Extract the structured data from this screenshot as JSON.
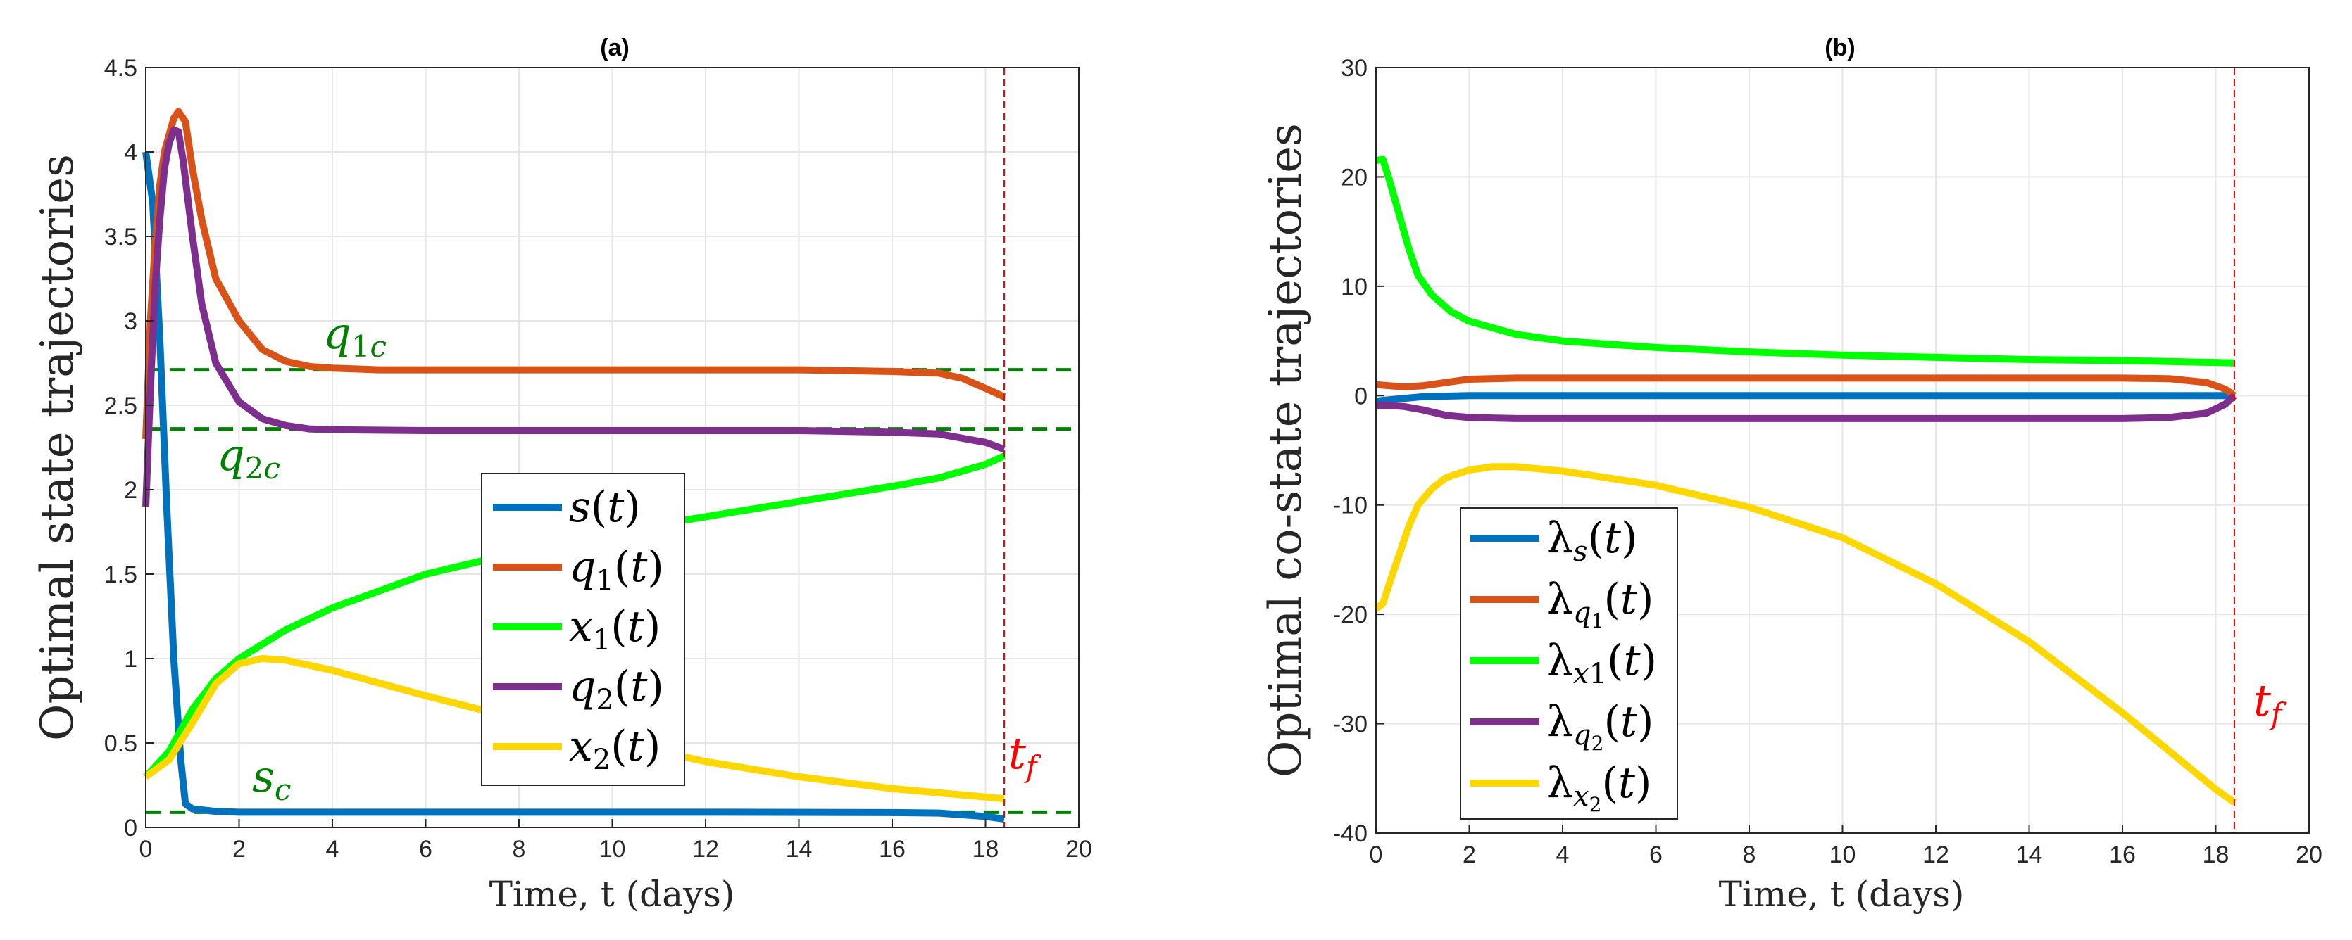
{
  "chart_data": [
    {
      "type": "line",
      "title": "(a)",
      "xlabel": "Time, t (days)",
      "ylabel": "Optimal state trajectories",
      "xlim": [
        0,
        20
      ],
      "ylim": [
        0,
        4.5
      ],
      "xticks": [
        0,
        2,
        4,
        6,
        8,
        10,
        12,
        14,
        16,
        18,
        20
      ],
      "yticks": [
        0,
        0.5,
        1,
        1.5,
        2,
        2.5,
        3,
        3.5,
        4,
        4.5
      ],
      "xtick_labels": [
        "0",
        "2",
        "4",
        "6",
        "8",
        "10",
        "12",
        "14",
        "16",
        "18",
        "20"
      ],
      "ytick_labels": [
        "0",
        "0.5",
        "1",
        "1.5",
        "2",
        "2.5",
        "3",
        "3.5",
        "4",
        "4.5"
      ],
      "grid": true,
      "legend_position": "center",
      "series": [
        {
          "name": "s(t)",
          "color": "#0072bd",
          "x": [
            0,
            0.15,
            0.3,
            0.45,
            0.6,
            0.75,
            0.85,
            1.0,
            1.5,
            2,
            4,
            8,
            12,
            16,
            17,
            18,
            18.4
          ],
          "y": [
            4.0,
            3.7,
            2.9,
            1.9,
            1.0,
            0.4,
            0.14,
            0.11,
            0.095,
            0.09,
            0.09,
            0.09,
            0.09,
            0.088,
            0.085,
            0.065,
            0.05
          ]
        },
        {
          "name": "q_1(t)",
          "color": "#d95319",
          "x": [
            0,
            0.1,
            0.2,
            0.3,
            0.4,
            0.5,
            0.6,
            0.7,
            0.85,
            1.0,
            1.2,
            1.5,
            2,
            2.5,
            3,
            3.5,
            4,
            5,
            6,
            8,
            10,
            12,
            14,
            16,
            17,
            17.5,
            18,
            18.4
          ],
          "y": [
            2.3,
            3.0,
            3.45,
            3.8,
            4.0,
            4.1,
            4.2,
            4.24,
            4.18,
            3.9,
            3.6,
            3.25,
            3.0,
            2.83,
            2.76,
            2.73,
            2.72,
            2.71,
            2.71,
            2.71,
            2.71,
            2.71,
            2.71,
            2.7,
            2.69,
            2.66,
            2.6,
            2.55
          ]
        },
        {
          "name": "x_1(t)",
          "color": "#00ff00",
          "x": [
            0,
            0.5,
            1,
            1.5,
            2,
            3,
            4,
            6,
            8,
            10,
            12,
            14,
            16,
            17,
            18,
            18.4
          ],
          "y": [
            0.3,
            0.45,
            0.7,
            0.88,
            1.0,
            1.17,
            1.3,
            1.5,
            1.63,
            1.75,
            1.84,
            1.93,
            2.02,
            2.07,
            2.15,
            2.2
          ]
        },
        {
          "name": "q_2(t)",
          "color": "#7e2f8e",
          "x": [
            0,
            0.1,
            0.2,
            0.3,
            0.4,
            0.5,
            0.6,
            0.7,
            0.8,
            1.0,
            1.2,
            1.5,
            2,
            2.5,
            3,
            3.5,
            4,
            6,
            8,
            10,
            12,
            14,
            16,
            17,
            18,
            18.4
          ],
          "y": [
            1.9,
            2.6,
            3.2,
            3.6,
            3.9,
            4.05,
            4.13,
            4.12,
            3.95,
            3.5,
            3.1,
            2.75,
            2.52,
            2.42,
            2.38,
            2.36,
            2.355,
            2.35,
            2.35,
            2.35,
            2.35,
            2.35,
            2.34,
            2.33,
            2.28,
            2.24
          ]
        },
        {
          "name": "x_2(t)",
          "color": "#ffd700",
          "x": [
            0,
            0.5,
            1,
            1.5,
            2,
            2.5,
            3,
            4,
            6,
            8,
            10,
            12,
            14,
            16,
            18.4
          ],
          "y": [
            0.3,
            0.4,
            0.62,
            0.85,
            0.97,
            1.0,
            0.99,
            0.93,
            0.78,
            0.64,
            0.51,
            0.39,
            0.3,
            0.23,
            0.17
          ]
        }
      ],
      "reference_lines": [
        {
          "label": "q_{1c}",
          "y": 2.71,
          "color": "#008000",
          "style": "dashed"
        },
        {
          "label": "q_{2c}",
          "y": 2.36,
          "color": "#008000",
          "style": "dashed"
        },
        {
          "label": "s_c",
          "y": 0.09,
          "color": "#008000",
          "style": "dashed"
        }
      ],
      "final_time": {
        "label": "t_f",
        "x": 18.4,
        "color": "#ff0000",
        "style": "dashed"
      },
      "annotations": [
        {
          "text": "q_{1c}",
          "x": 3.8,
          "y": 2.83,
          "color": "#008000"
        },
        {
          "text": "q_{2c}",
          "x": 1.5,
          "y": 2.12,
          "color": "#008000"
        },
        {
          "text": "s_c",
          "x": 2.3,
          "y": 0.17,
          "color": "#008000"
        },
        {
          "text": "t_f",
          "x": 18.6,
          "y": 0.4,
          "color": "#ff0000"
        }
      ]
    },
    {
      "type": "line",
      "title": "(b)",
      "xlabel": "Time, t (days)",
      "ylabel": "Optimal co-state trajectories",
      "xlim": [
        0,
        20
      ],
      "ylim": [
        -40,
        30
      ],
      "xticks": [
        0,
        2,
        4,
        6,
        8,
        10,
        12,
        14,
        16,
        18,
        20
      ],
      "yticks": [
        -40,
        -30,
        -20,
        -10,
        0,
        10,
        20,
        30
      ],
      "xtick_labels": [
        "0",
        "2",
        "4",
        "6",
        "8",
        "10",
        "12",
        "14",
        "16",
        "18",
        "20"
      ],
      "ytick_labels": [
        "-40",
        "-30",
        "-20",
        "-10",
        "0",
        "10",
        "20",
        "30"
      ],
      "grid": true,
      "legend_position": "lower-left",
      "series": [
        {
          "name": "λ_s(t)",
          "color": "#0072bd",
          "x": [
            0,
            0.5,
            1,
            2,
            4,
            8,
            12,
            16,
            18,
            18.4
          ],
          "y": [
            -0.5,
            -0.3,
            -0.1,
            0,
            0,
            0,
            0,
            0,
            0,
            0
          ]
        },
        {
          "name": "λ_q1(t)",
          "color": "#d95319",
          "x": [
            0,
            0.3,
            0.6,
            1,
            1.5,
            2,
            3,
            4,
            8,
            12,
            16,
            17,
            17.8,
            18.2,
            18.4
          ],
          "y": [
            1.0,
            0.9,
            0.8,
            0.9,
            1.2,
            1.5,
            1.6,
            1.6,
            1.6,
            1.6,
            1.6,
            1.55,
            1.2,
            0.6,
            0
          ]
        },
        {
          "name": "λ_x1(t)",
          "color": "#00ff00",
          "x": [
            0,
            0.15,
            0.3,
            0.5,
            0.7,
            0.9,
            1.2,
            1.6,
            2,
            3,
            4,
            6,
            8,
            10,
            12,
            14,
            16,
            18.4
          ],
          "y": [
            21.5,
            21.6,
            19.5,
            16.5,
            13.5,
            11.0,
            9.2,
            7.7,
            6.8,
            5.6,
            5.0,
            4.4,
            4.0,
            3.7,
            3.5,
            3.3,
            3.2,
            3.0
          ]
        },
        {
          "name": "λ_q2(t)",
          "color": "#7e2f8e",
          "x": [
            0,
            0.3,
            0.6,
            1,
            1.5,
            2,
            3,
            4,
            8,
            12,
            16,
            17,
            17.8,
            18.2,
            18.4
          ],
          "y": [
            -0.9,
            -0.9,
            -1.0,
            -1.3,
            -1.8,
            -2.0,
            -2.1,
            -2.1,
            -2.1,
            -2.1,
            -2.1,
            -2.0,
            -1.6,
            -0.8,
            0
          ]
        },
        {
          "name": "λ_x2(t)",
          "color": "#ffd700",
          "x": [
            0,
            0.15,
            0.3,
            0.5,
            0.7,
            0.9,
            1.2,
            1.5,
            2,
            2.5,
            3,
            4,
            6,
            8,
            10,
            12,
            14,
            16,
            17,
            18,
            18.4
          ],
          "y": [
            -19.5,
            -19.0,
            -17.0,
            -14.5,
            -12.0,
            -10.0,
            -8.5,
            -7.5,
            -6.8,
            -6.5,
            -6.5,
            -6.9,
            -8.2,
            -10.2,
            -13.0,
            -17.2,
            -22.5,
            -29.0,
            -32.5,
            -36.0,
            -37.2
          ]
        }
      ],
      "final_time": {
        "label": "t_f",
        "x": 18.4,
        "color": "#ff0000",
        "style": "dashed"
      },
      "annotations": [
        {
          "text": "t_f",
          "x": 18.7,
          "y": -29,
          "color": "#ff0000"
        }
      ]
    }
  ]
}
